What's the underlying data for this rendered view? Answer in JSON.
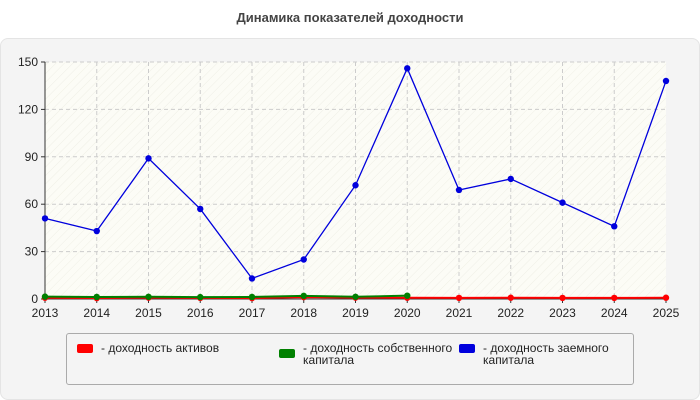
{
  "chart_data": {
    "type": "line",
    "title": "Динамика показателей доходности",
    "x": [
      "2013",
      "2014",
      "2015",
      "2016",
      "2017",
      "2018",
      "2019",
      "2020",
      "2021",
      "2022",
      "2023",
      "2024",
      "2025"
    ],
    "ylim": [
      0,
      150
    ],
    "yticks": [
      0,
      30,
      60,
      90,
      120,
      150
    ],
    "grid": true,
    "legend_position": "bottom",
    "series": [
      {
        "name": "- доходность активов",
        "color": "#ff0000",
        "values": [
          0.8,
          0.6,
          0.9,
          0.7,
          0.6,
          1.2,
          0.9,
          0.8,
          0.7,
          0.8,
          0.7,
          0.7,
          0.8
        ]
      },
      {
        "name": "- доходность собственного капитала",
        "color": "#008000",
        "values": [
          1.5,
          1.3,
          1.4,
          1.2,
          1.3,
          2.0,
          1.4,
          2.1,
          null,
          null,
          null,
          null,
          null
        ]
      },
      {
        "name": "- доходность заемного капитала",
        "color": "#0000dd",
        "values": [
          51,
          43,
          89,
          57,
          13,
          25,
          72,
          146,
          69,
          76,
          61,
          46,
          138
        ]
      }
    ]
  }
}
